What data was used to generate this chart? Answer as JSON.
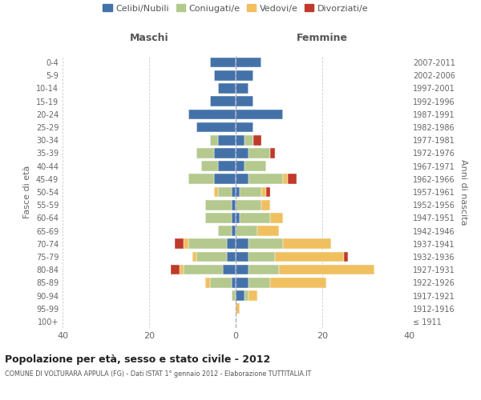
{
  "age_groups": [
    "100+",
    "95-99",
    "90-94",
    "85-89",
    "80-84",
    "75-79",
    "70-74",
    "65-69",
    "60-64",
    "55-59",
    "50-54",
    "45-49",
    "40-44",
    "35-39",
    "30-34",
    "25-29",
    "20-24",
    "15-19",
    "10-14",
    "5-9",
    "0-4"
  ],
  "birth_years": [
    "≤ 1911",
    "1912-1916",
    "1917-1921",
    "1922-1926",
    "1927-1931",
    "1932-1936",
    "1937-1941",
    "1942-1946",
    "1947-1951",
    "1952-1956",
    "1957-1961",
    "1962-1966",
    "1967-1971",
    "1972-1976",
    "1977-1981",
    "1982-1986",
    "1987-1991",
    "1992-1996",
    "1997-2001",
    "2002-2006",
    "2007-2011"
  ],
  "maschi_celibi": [
    0,
    0,
    0,
    1,
    3,
    2,
    2,
    1,
    1,
    1,
    1,
    5,
    4,
    5,
    4,
    9,
    11,
    6,
    4,
    5,
    6
  ],
  "maschi_coniugati": [
    0,
    0,
    1,
    5,
    9,
    7,
    9,
    3,
    6,
    6,
    3,
    6,
    4,
    4,
    2,
    0,
    0,
    0,
    0,
    0,
    0
  ],
  "maschi_vedovi": [
    0,
    0,
    0,
    1,
    1,
    1,
    1,
    0,
    0,
    0,
    1,
    0,
    0,
    0,
    0,
    0,
    0,
    0,
    0,
    0,
    0
  ],
  "maschi_divorziati": [
    0,
    0,
    0,
    0,
    2,
    0,
    2,
    0,
    0,
    0,
    0,
    0,
    0,
    0,
    0,
    0,
    0,
    0,
    0,
    0,
    0
  ],
  "femmine_celibi": [
    0,
    0,
    2,
    3,
    3,
    3,
    3,
    0,
    1,
    0,
    1,
    3,
    2,
    3,
    2,
    4,
    11,
    4,
    3,
    4,
    6
  ],
  "femmine_coniugati": [
    0,
    0,
    1,
    5,
    7,
    6,
    8,
    5,
    7,
    6,
    5,
    8,
    5,
    5,
    2,
    0,
    0,
    0,
    0,
    0,
    0
  ],
  "femmine_vedovi": [
    0,
    1,
    2,
    13,
    22,
    16,
    11,
    5,
    3,
    2,
    1,
    1,
    0,
    0,
    0,
    0,
    0,
    0,
    0,
    0,
    0
  ],
  "femmine_divorziati": [
    0,
    0,
    0,
    0,
    0,
    1,
    0,
    0,
    0,
    0,
    1,
    2,
    0,
    1,
    2,
    0,
    0,
    0,
    0,
    0,
    0
  ],
  "color_celibi": "#4472a8",
  "color_coniugati": "#b5c98e",
  "color_vedovi": "#f0c060",
  "color_divorziati": "#c0392b",
  "xlim": [
    -40,
    40
  ],
  "xticks": [
    -40,
    -20,
    0,
    20,
    40
  ],
  "xticklabels": [
    "40",
    "20",
    "0",
    "20",
    "40"
  ],
  "title": "Popolazione per età, sesso e stato civile - 2012",
  "subtitle": "COMUNE DI VOLTURARA APPULA (FG) - Dati ISTAT 1° gennaio 2012 - Elaborazione TUTTITALIA.IT",
  "ylabel_left": "Fasce di età",
  "ylabel_right": "Anni di nascita",
  "label_maschi": "Maschi",
  "label_femmine": "Femmine",
  "legend_labels": [
    "Celibi/Nubili",
    "Coniugati/e",
    "Vedovi/e",
    "Divorziati/e"
  ],
  "background_color": "#ffffff",
  "grid_color": "#cccccc"
}
